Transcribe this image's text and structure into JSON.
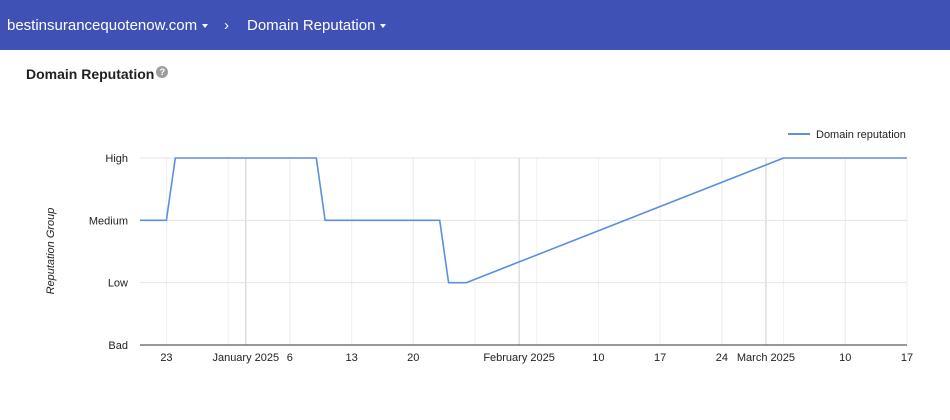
{
  "header": {
    "domain_label": "bestinsurancequotenow.com",
    "separator": "›",
    "section_label": "Domain Reputation"
  },
  "page": {
    "title": "Domain Reputation",
    "help_glyph": "?"
  },
  "chart_data": {
    "type": "line",
    "ylabel": "Reputation Group",
    "y_categories": [
      "Bad",
      "Low",
      "Medium",
      "High"
    ],
    "x_ticks": [
      "23",
      "January 2025",
      "6",
      "13",
      "20",
      "February 2025",
      "10",
      "17",
      "24",
      "March 2025",
      "10",
      "17"
    ],
    "xlim": [
      "2024-12-20",
      "2025-03-17"
    ],
    "grid": true,
    "legend_position": "top-right",
    "series": [
      {
        "name": "Domain reputation",
        "color": "#5b8fe0",
        "points": [
          {
            "x": "2024-12-20",
            "y": "Medium"
          },
          {
            "x": "2024-12-23",
            "y": "Medium"
          },
          {
            "x": "2024-12-24",
            "y": "High"
          },
          {
            "x": "2025-01-09",
            "y": "High"
          },
          {
            "x": "2025-01-10",
            "y": "Medium"
          },
          {
            "x": "2025-01-23",
            "y": "Medium"
          },
          {
            "x": "2025-01-24",
            "y": "Low"
          },
          {
            "x": "2025-01-26",
            "y": "Low"
          },
          {
            "x": "2025-03-03",
            "y": "High"
          },
          {
            "x": "2025-03-17",
            "y": "High"
          }
        ]
      }
    ]
  }
}
